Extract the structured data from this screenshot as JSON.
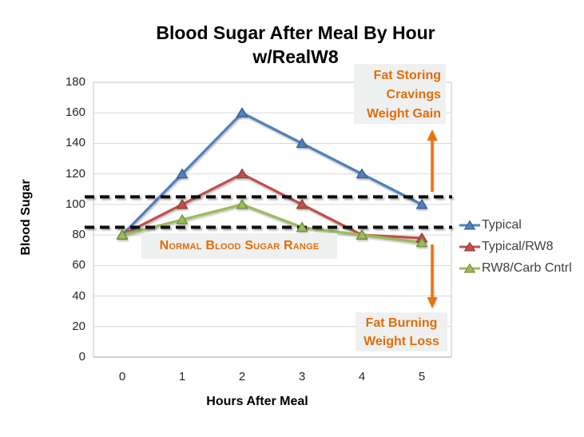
{
  "chart": {
    "title_line1": "Blood Sugar After Meal By Hour",
    "title_line2": "w/RealW8",
    "y_axis_title": "Blood Sugar",
    "x_axis_title": "Hours After Meal"
  },
  "chart_data": {
    "type": "line",
    "title": "Blood Sugar After Meal By Hour w/RealW8",
    "xlabel": "Hours After Meal",
    "ylabel": "Blood Sugar",
    "x": [
      0,
      1,
      2,
      3,
      4,
      5
    ],
    "ylim": [
      0,
      180
    ],
    "ytick_step": 20,
    "grid": true,
    "legend_position": "right",
    "series": [
      {
        "name": "Typical",
        "color": "#4F81BD",
        "edge": "#35598B",
        "marker": "triangle",
        "values": [
          80,
          120,
          160,
          140,
          120,
          100
        ]
      },
      {
        "name": "Typical/RW8",
        "color": "#C0504D",
        "edge": "#8E3836",
        "marker": "triangle",
        "values": [
          80,
          100,
          120,
          100,
          80,
          78
        ]
      },
      {
        "name": "RW8/Carb Cntrl",
        "color": "#9BBB59",
        "edge": "#6F8C3A",
        "marker": "triangle",
        "values": [
          80,
          90,
          100,
          85,
          80,
          75
        ]
      }
    ],
    "reference_lines": [
      {
        "value": 105,
        "style": "dashed",
        "color": "#0d0d0d"
      },
      {
        "value": 85,
        "style": "dashed",
        "color": "#0d0d0d"
      }
    ],
    "annotations": {
      "accent_color": "#E8740E",
      "text_color": "#E36C09",
      "box_bg": "#EFF1F0",
      "normal_range_label": "Normal Blood Sugar Range",
      "fat_storing_line1": "Fat Storing",
      "fat_storing_line2": "Cravings",
      "fat_storing_line3": "Weight Gain",
      "fat_burning_line1": "Fat Burning",
      "fat_burning_line2": "Weight Loss"
    }
  }
}
